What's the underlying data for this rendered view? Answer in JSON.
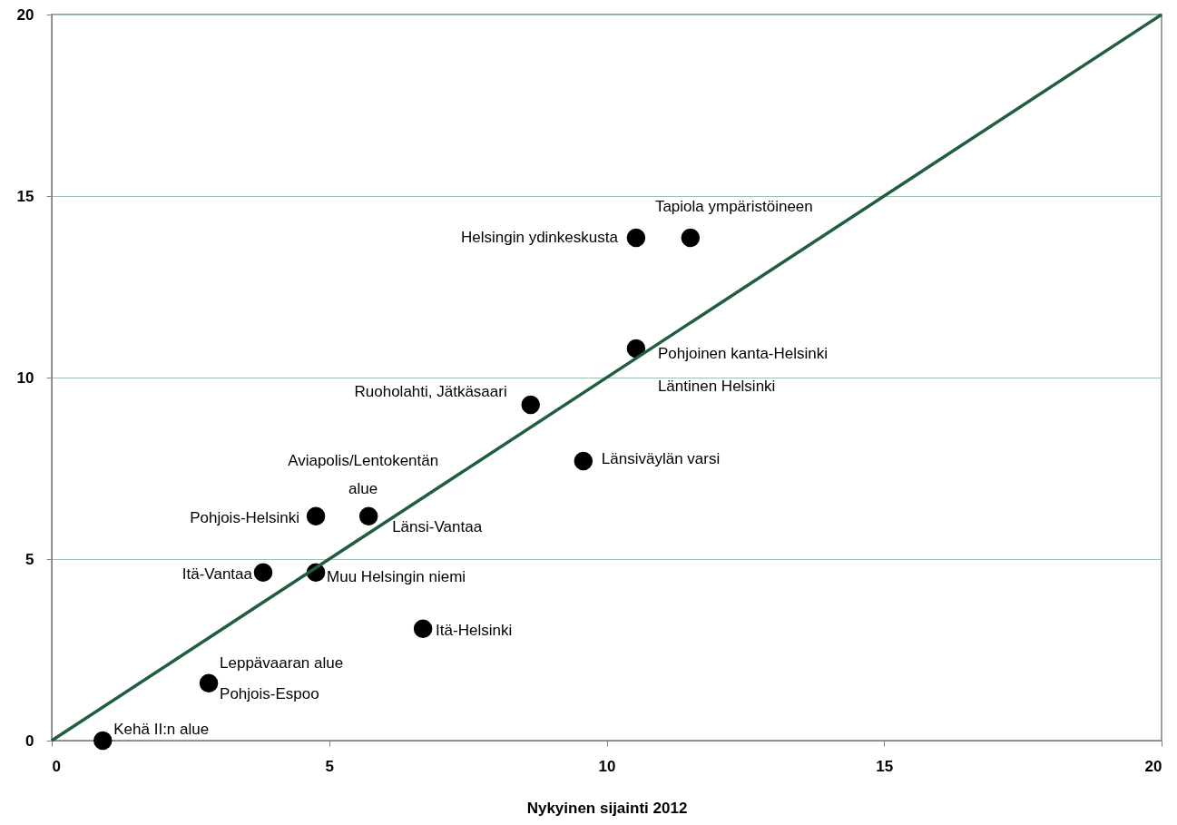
{
  "chart_data": {
    "type": "scatter",
    "xlabel": "Nykyinen sijainti 2012",
    "xlim": [
      0,
      20
    ],
    "ylim": [
      0,
      20
    ],
    "xticks": [
      0,
      5,
      10,
      15,
      20
    ],
    "yticks": [
      0,
      5,
      10,
      15,
      20
    ],
    "grid": "y",
    "series": [
      {
        "marker": "circle",
        "color": "#000000",
        "x": [
          0.92,
          2.83,
          3.81,
          4.76,
          4.76,
          5.71,
          6.69,
          8.63,
          9.58,
          10.53,
          10.53,
          11.51
        ],
        "values": [
          0,
          1.58,
          4.63,
          4.63,
          6.18,
          6.18,
          3.08,
          9.25,
          7.7,
          10.8,
          13.85,
          13.85
        ]
      },
      {
        "type": "line",
        "color": "#215e3e",
        "x": [
          0,
          20
        ],
        "values": [
          0,
          20
        ]
      }
    ],
    "annotations": [
      {
        "text": "Kehä II:n alue",
        "x": 0.92,
        "y": 0
      },
      {
        "text": "Leppävaaran alue",
        "x": 2.83,
        "y": 1.58
      },
      {
        "text": "Pohjois-Espoo",
        "x": 2.83,
        "y": 1.58
      },
      {
        "text": "Itä-Vantaa",
        "x": 3.81,
        "y": 4.63
      },
      {
        "text": "Muu Helsingin niemi",
        "x": 4.76,
        "y": 4.63
      },
      {
        "text": "Pohjois-Helsinki",
        "x": 4.76,
        "y": 6.18
      },
      {
        "text": "Aviapolis/Lentokentän alue",
        "x": 5.71,
        "y": 6.18
      },
      {
        "text": "Länsi-Vantaa",
        "x": 5.71,
        "y": 6.18
      },
      {
        "text": "Itä-Helsinki",
        "x": 6.69,
        "y": 3.08
      },
      {
        "text": "Ruoholahti, Jätkäsaari",
        "x": 8.63,
        "y": 9.25
      },
      {
        "text": "Länsiväylän varsi",
        "x": 9.58,
        "y": 7.7
      },
      {
        "text": "Pohjoinen kanta-Helsinki",
        "x": 10.53,
        "y": 10.8
      },
      {
        "text": "Läntinen Helsinki",
        "x": 10.53,
        "y": 10.8
      },
      {
        "text": "Helsingin ydinkeskusta",
        "x": 10.53,
        "y": 13.85
      },
      {
        "text": "Tapiola ympäristöineen",
        "x": 11.51,
        "y": 13.85
      }
    ]
  }
}
